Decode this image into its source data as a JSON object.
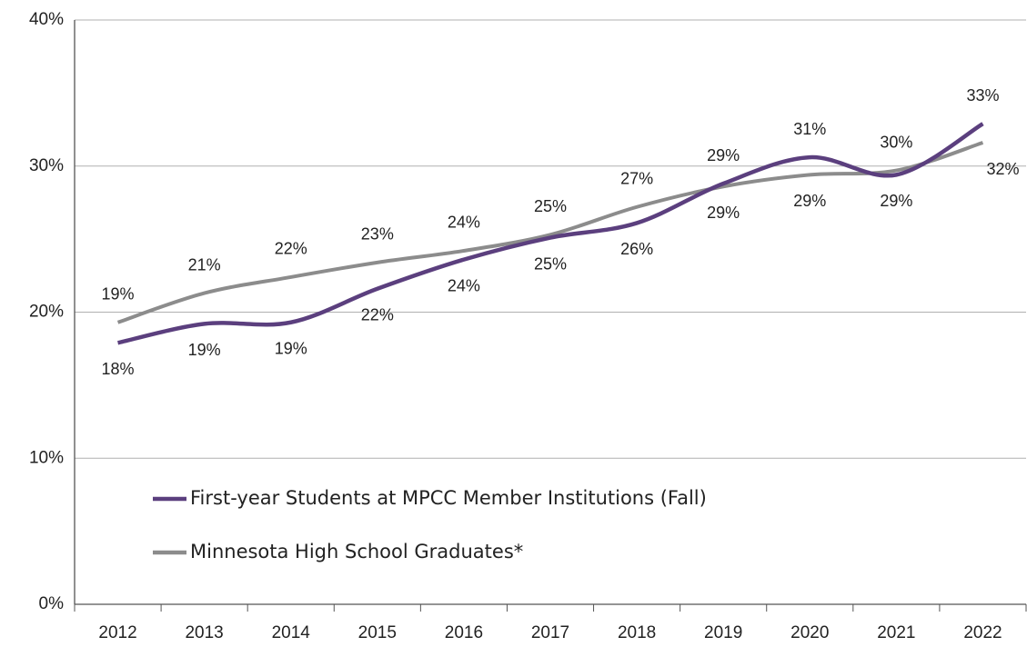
{
  "chart_data": {
    "type": "line",
    "categories": [
      "2012",
      "2013",
      "2014",
      "2015",
      "2016",
      "2017",
      "2018",
      "2019",
      "2020",
      "2021",
      "2022"
    ],
    "series": [
      {
        "name": "First-year Students at MPCC Member Institutions (Fall)",
        "color": "#5b3f7e",
        "values": [
          17.9,
          19.2,
          19.3,
          21.6,
          23.6,
          25.1,
          26.1,
          28.8,
          30.6,
          29.4,
          32.9
        ],
        "value_labels": [
          "18%",
          "19%",
          "19%",
          "22%",
          "24%",
          "25%",
          "26%",
          "29%",
          "31%",
          "29%",
          "33%"
        ]
      },
      {
        "name": "Minnesota High School Graduates*",
        "color": "#8c8c8c",
        "values": [
          19.3,
          21.3,
          22.4,
          23.4,
          24.2,
          25.3,
          27.2,
          28.6,
          29.4,
          29.7,
          31.6
        ],
        "value_labels": [
          "19%",
          "21%",
          "22%",
          "23%",
          "24%",
          "25%",
          "27%",
          "29%",
          "29%",
          "30%",
          "32%"
        ]
      }
    ],
    "ylim": [
      0,
      40
    ],
    "yticks": [
      {
        "value": 0,
        "label": "0%"
      },
      {
        "value": 10,
        "label": "10%"
      },
      {
        "value": 20,
        "label": "20%"
      },
      {
        "value": 30,
        "label": "30%"
      },
      {
        "value": 40,
        "label": "40%"
      }
    ],
    "grid": true,
    "legend": "lower left"
  }
}
